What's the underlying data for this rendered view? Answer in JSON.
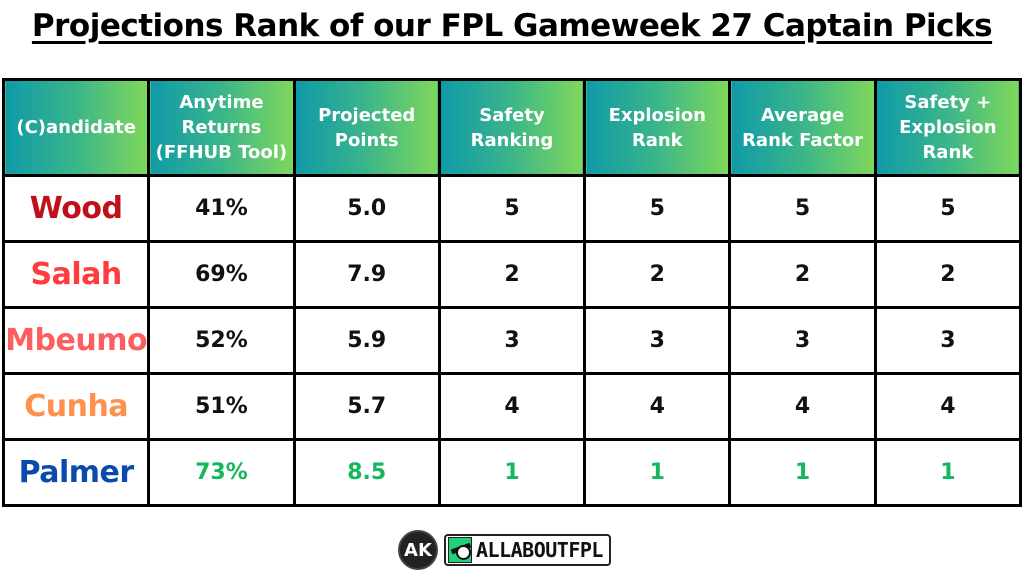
{
  "title": "Projections Rank of our FPL Gameweek 27 Captain Picks",
  "table": {
    "headers": [
      [
        "(C)andidate"
      ],
      [
        "Anytime",
        "Returns",
        "(FFHUB Tool)"
      ],
      [
        "Projected",
        "Points"
      ],
      [
        "Safety",
        "Ranking"
      ],
      [
        "Explosion",
        "Rank"
      ],
      [
        "Average",
        "Rank Factor"
      ],
      [
        "Safety +",
        "Explosion",
        "Rank"
      ]
    ],
    "rows": [
      {
        "name": "Wood",
        "name_color": "#c0101a",
        "value_color": "#111111",
        "cells": [
          "41%",
          "5.0",
          "5",
          "5",
          "5",
          "5"
        ]
      },
      {
        "name": "Salah",
        "name_color": "#ff3b3b",
        "value_color": "#111111",
        "cells": [
          "69%",
          "7.9",
          "2",
          "2",
          "2",
          "2"
        ]
      },
      {
        "name": "Mbeumo",
        "name_color": "#ff5e5e",
        "value_color": "#111111",
        "cells": [
          "52%",
          "5.9",
          "3",
          "3",
          "3",
          "3"
        ]
      },
      {
        "name": "Cunha",
        "name_color": "#ff914d",
        "value_color": "#111111",
        "cells": [
          "51%",
          "5.7",
          "4",
          "4",
          "4",
          "4"
        ]
      },
      {
        "name": "Palmer",
        "name_color": "#0b4aad",
        "value_color": "#12b85a",
        "cells": [
          "73%",
          "8.5",
          "1",
          "1",
          "1",
          "1"
        ]
      }
    ]
  },
  "chart_data": {
    "type": "table",
    "title": "Projections Rank of our FPL Gameweek 27 Captain Picks",
    "columns": [
      "(C)andidate",
      "Anytime Returns (FFHUB Tool)",
      "Projected Points",
      "Safety Ranking",
      "Explosion Rank",
      "Average Rank Factor",
      "Safety + Explosion Rank"
    ],
    "rows": [
      [
        "Wood",
        "41%",
        5.0,
        5,
        5,
        5,
        5
      ],
      [
        "Salah",
        "69%",
        7.9,
        2,
        2,
        2,
        2
      ],
      [
        "Mbeumo",
        "52%",
        5.9,
        3,
        3,
        3,
        3
      ],
      [
        "Cunha",
        "51%",
        5.7,
        4,
        4,
        4,
        4
      ],
      [
        "Palmer",
        "73%",
        8.5,
        1,
        1,
        1,
        1
      ]
    ],
    "colors": {
      "header_gradient": [
        "#0f9aa8",
        "#7fd85a"
      ],
      "highlight": "#12b85a"
    }
  },
  "footer": {
    "ak_logo": "AK",
    "brand": "ALLABOUTFPL"
  }
}
